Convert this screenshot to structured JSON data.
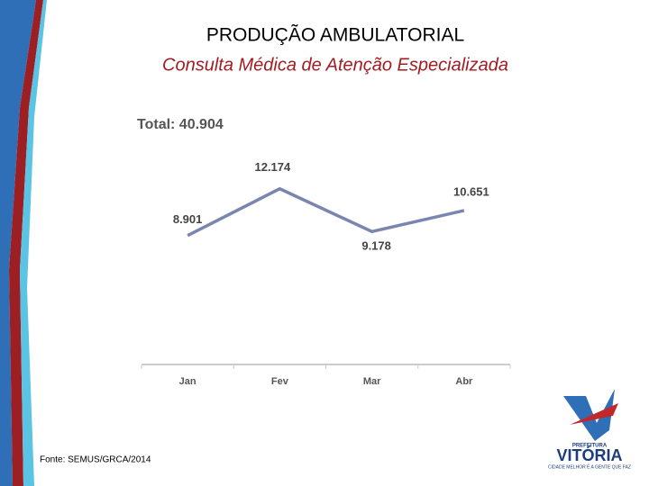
{
  "chart_data": {
    "type": "line",
    "title": "PRODUÇÃO AMBULATORIAL",
    "subtitle": "Consulta Médica de Atenção Especializada",
    "annotation": "Total: 40.904",
    "categories": [
      "Jan",
      "Fev",
      "Mar",
      "Abr"
    ],
    "values": [
      8901,
      12174,
      9178,
      10651
    ],
    "value_labels": [
      "8.901",
      "12.174",
      "9.178",
      "10.651"
    ],
    "color": "#7b86b0",
    "ylim": [
      0,
      16000
    ],
    "source": "Fonte: SEMUS/GRCA/2014"
  },
  "logo": {
    "top": "PREFEITURA",
    "name": "VITÓRIA",
    "slogan": "CIDADE MELHOR É A GENTE QUE FAZ"
  }
}
